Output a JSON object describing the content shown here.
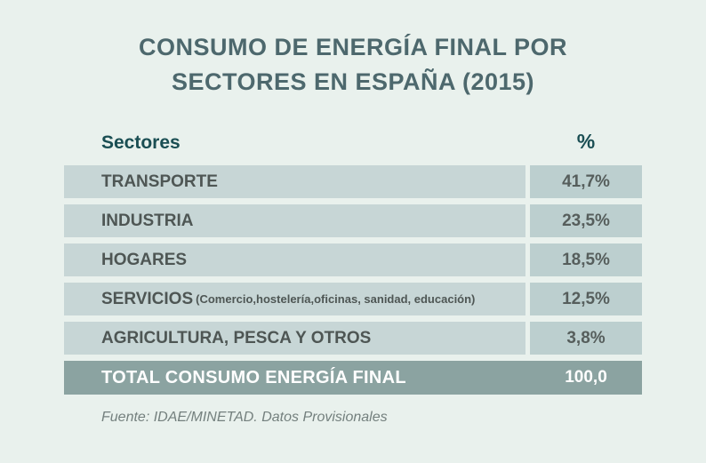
{
  "page": {
    "title_line1": "CONSUMO DE ENERGÍA FINAL POR",
    "title_line2": "SECTORES EN ESPAÑA (2015)",
    "source": "Fuente: IDAE/MINETAD. Datos Provisionales"
  },
  "table": {
    "header": {
      "sector": "Sectores",
      "percent": "%"
    },
    "rows": [
      {
        "sector": "TRANSPORTE",
        "detail": "",
        "percent": "41,7%"
      },
      {
        "sector": "INDUSTRIA",
        "detail": "",
        "percent": "23,5%"
      },
      {
        "sector": "HOGARES",
        "detail": "",
        "percent": "18,5%"
      },
      {
        "sector": "SERVICIOS",
        "detail": "(Comercio,hostelería,oficinas, sanidad, educación)",
        "percent": "12,5%"
      },
      {
        "sector": "AGRICULTURA, PESCA Y OTROS",
        "detail": "",
        "percent": "3,8%"
      }
    ],
    "total": {
      "label": "TOTAL CONSUMO ENERGÍA FINAL",
      "percent": "100,0"
    }
  },
  "chart_data": {
    "type": "table",
    "title": "CONSUMO DE ENERGÍA FINAL POR SECTORES EN ESPAÑA (2015)",
    "columns": [
      "Sectores",
      "%"
    ],
    "categories": [
      "TRANSPORTE",
      "INDUSTRIA",
      "HOGARES",
      "SERVICIOS (Comercio,hostelería,oficinas, sanidad, educación)",
      "AGRICULTURA, PESCA Y OTROS",
      "TOTAL CONSUMO ENERGÍA FINAL"
    ],
    "values": [
      41.7,
      23.5,
      18.5,
      12.5,
      3.8,
      100.0
    ],
    "source": "Fuente: IDAE/MINETAD. Datos Provisionales"
  },
  "colors": {
    "background": "#e9f1ed",
    "title_text": "#4d686d",
    "header_text": "#1a4e53",
    "row_bg": "#c7d6d6",
    "percent_bg": "#bccfcf",
    "row_text": "#4e5654",
    "total_bg": "#8ba3a1",
    "total_text": "#ffffff",
    "source_text": "#74807e"
  }
}
